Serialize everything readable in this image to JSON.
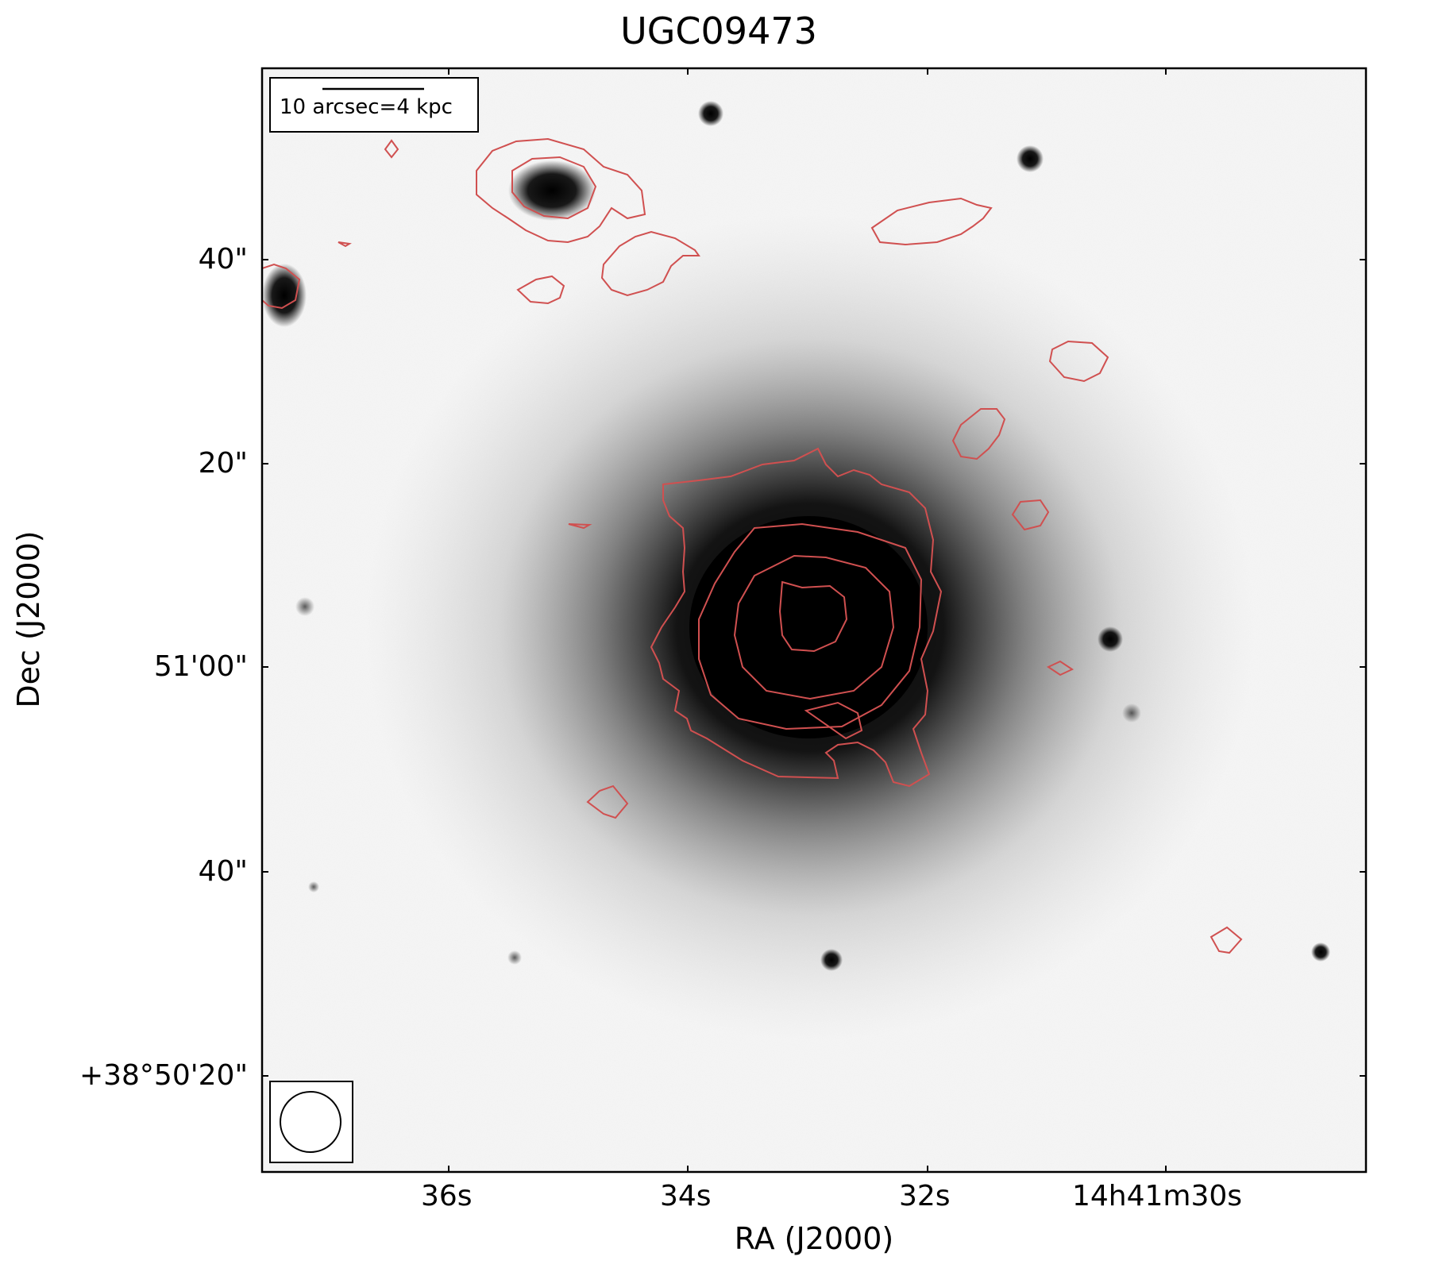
{
  "figure": {
    "title": "UGC09473",
    "xlabel": "RA (J2000)",
    "ylabel": "Dec (J2000)",
    "xticks": [
      "36s",
      "34s",
      "32s",
      "14h41m30s"
    ],
    "yticks": [
      "40\"",
      "20\"",
      "51'00\"",
      "40\"",
      "+38°50'20\""
    ],
    "scalebar_label": "10 arcsec=4 kpc",
    "contour_color": "#d05050"
  }
}
